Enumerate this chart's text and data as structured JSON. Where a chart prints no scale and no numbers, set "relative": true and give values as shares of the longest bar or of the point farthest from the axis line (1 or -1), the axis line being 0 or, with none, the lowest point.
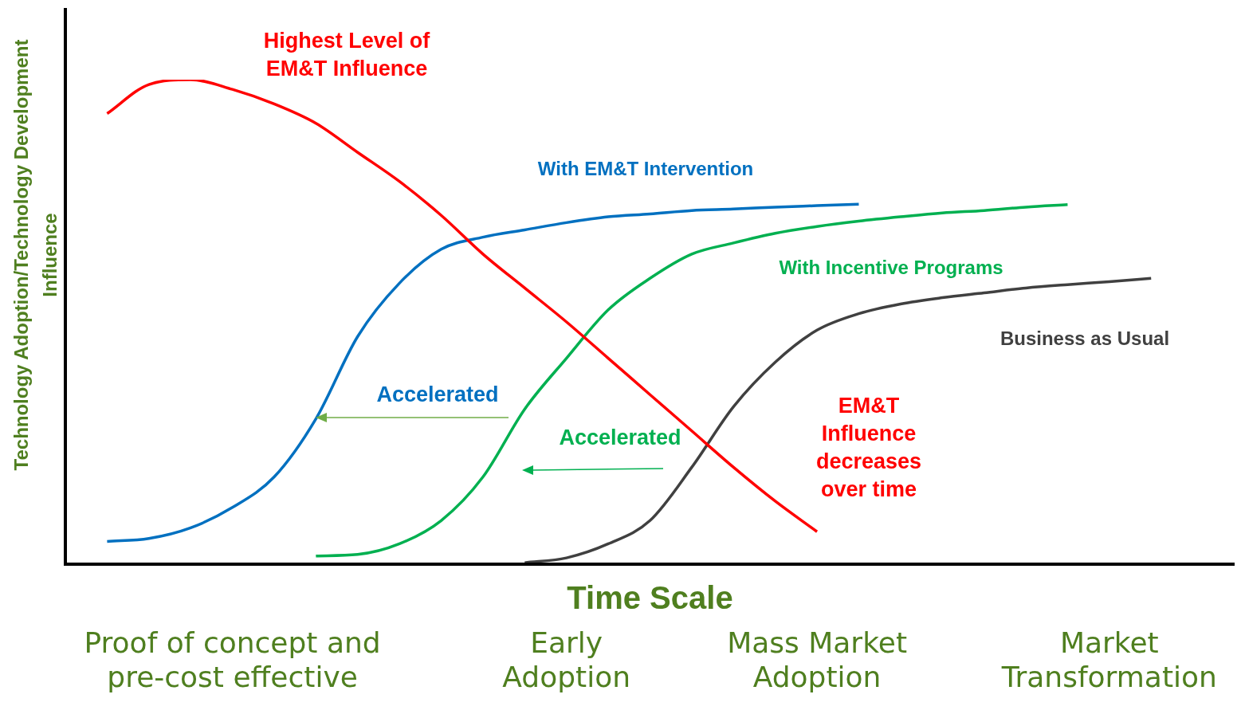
{
  "chart_data": {
    "type": "line",
    "relative": true,
    "xlabel": "Time Scale",
    "ylabel": "Technology Adoption/Technology Development\nInfluence",
    "categories": [
      null,
      null,
      null,
      null,
      "Proof of concept and\npre-cost effective",
      null,
      null,
      null,
      null,
      null,
      null,
      null,
      "Early\nAdoption",
      null,
      null,
      null,
      null,
      null,
      "Mass Market\nAdoption",
      null,
      null,
      null,
      null,
      null,
      null,
      "Market\nTransformation",
      null,
      null,
      null
    ],
    "series": [
      {
        "color": "#ff0000",
        "values": [
          null,
          0.93,
          0.99,
          1.0,
          0.98,
          0.95,
          0.91,
          0.85,
          0.79,
          0.72,
          0.64,
          0.57,
          0.5,
          0.425,
          0.35,
          0.275,
          0.2,
          0.13,
          0.067,
          null,
          null,
          null,
          null,
          null,
          null,
          null,
          null,
          null,
          null
        ]
      },
      {
        "name": "With EM&T Intervention",
        "color": "#0070c0",
        "values": [
          null,
          0.047,
          0.053,
          0.075,
          0.117,
          0.18,
          0.3,
          0.47,
          0.58,
          0.65,
          0.675,
          0.69,
          0.705,
          0.717,
          0.723,
          0.73,
          0.733,
          0.737,
          0.74,
          0.743,
          null,
          null,
          null,
          null,
          null,
          null,
          null,
          null,
          null
        ]
      },
      {
        "name": "With Incentive Programs",
        "color": "#00b050",
        "values": [
          null,
          null,
          null,
          null,
          null,
          null,
          0.017,
          0.02,
          0.042,
          0.09,
          0.18,
          0.32,
          0.425,
          0.525,
          0.59,
          0.64,
          0.663,
          0.683,
          0.697,
          0.708,
          0.717,
          0.725,
          0.73,
          0.737,
          0.742,
          null,
          null,
          null,
          null
        ]
      },
      {
        "name": "Business as Usual",
        "color": "#404040",
        "values": [
          null,
          null,
          null,
          null,
          null,
          null,
          null,
          null,
          null,
          null,
          null,
          0.003,
          0.013,
          0.042,
          0.09,
          0.2,
          0.325,
          0.417,
          0.483,
          0.517,
          0.537,
          0.55,
          0.56,
          0.57,
          0.577,
          0.583,
          0.59,
          null,
          null
        ]
      }
    ],
    "annotations": [
      "Highest Level of\nEM&T Influence",
      "Accelerated",
      "Accelerated",
      "EM&T\nInfluence\ndecreases\nover time"
    ]
  }
}
